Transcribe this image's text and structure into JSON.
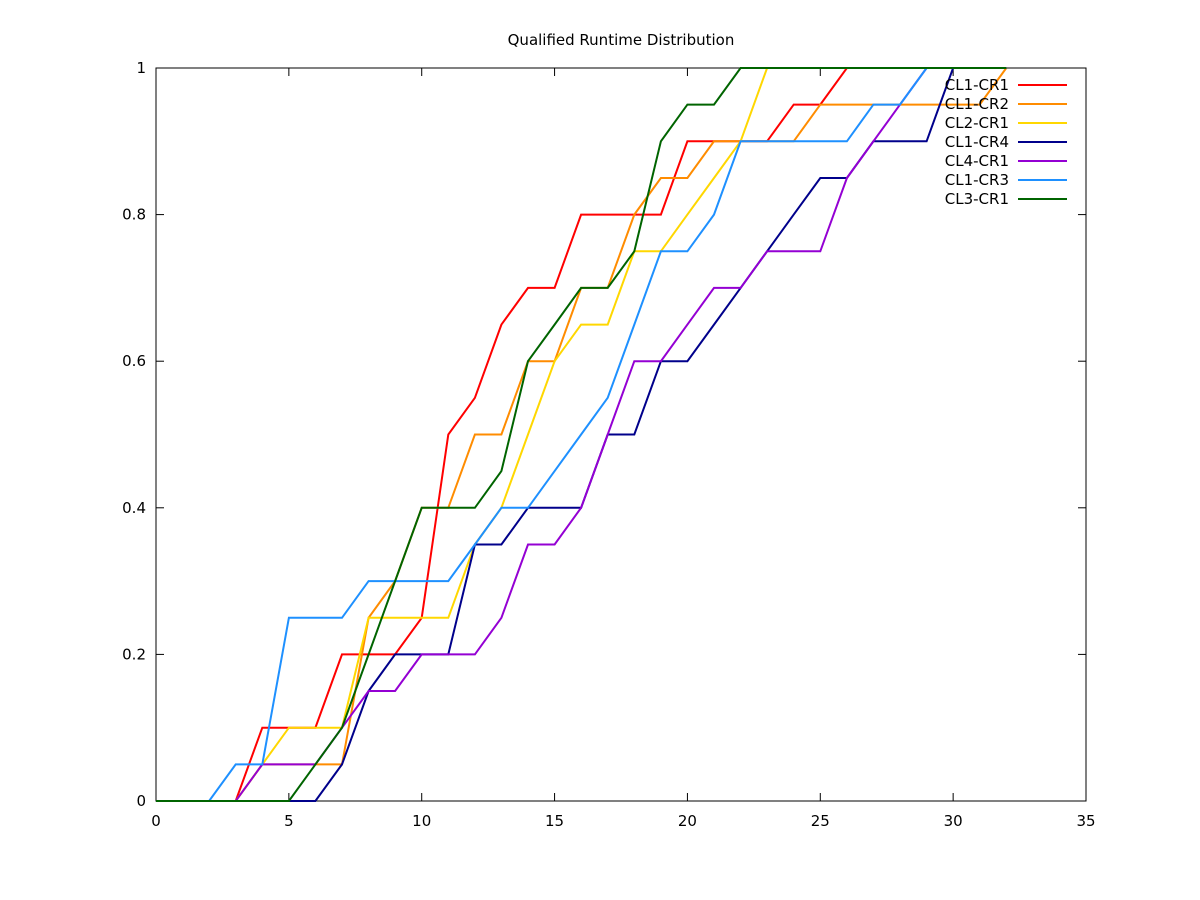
{
  "chart_data": {
    "type": "line",
    "title": "Qualified Runtime Distribution",
    "xlabel": "",
    "ylabel": "",
    "xlim": [
      0,
      35
    ],
    "ylim": [
      0,
      1
    ],
    "xticks": [
      0,
      5,
      10,
      15,
      20,
      25,
      30,
      35
    ],
    "yticks": [
      0,
      0.2,
      0.4,
      0.6,
      0.8,
      1
    ],
    "grid": false,
    "legend_position": "top-right",
    "series": [
      {
        "name": "CL1-CR1",
        "color": "#ff0000",
        "x": [
          0,
          1,
          2,
          3,
          4,
          5,
          6,
          7,
          8,
          9,
          10,
          11,
          12,
          13,
          14,
          15,
          16,
          17,
          18,
          19,
          20,
          21,
          22,
          23,
          24,
          25,
          26,
          27,
          28,
          29,
          30,
          31,
          32
        ],
        "y": [
          0,
          0,
          0,
          0,
          0.1,
          0.1,
          0.1,
          0.2,
          0.2,
          0.2,
          0.25,
          0.5,
          0.55,
          0.65,
          0.7,
          0.7,
          0.8,
          0.8,
          0.8,
          0.8,
          0.9,
          0.9,
          0.9,
          0.9,
          0.95,
          0.95,
          1,
          1,
          1,
          1,
          1,
          1,
          1
        ]
      },
      {
        "name": "CL1-CR2",
        "color": "#ff8c00",
        "x": [
          0,
          1,
          2,
          3,
          4,
          5,
          6,
          7,
          8,
          9,
          10,
          11,
          12,
          13,
          14,
          15,
          16,
          17,
          18,
          19,
          20,
          21,
          22,
          23,
          24,
          25,
          26,
          27,
          28,
          29,
          30,
          31,
          32
        ],
        "y": [
          0,
          0,
          0,
          0,
          0.05,
          0.05,
          0.05,
          0.05,
          0.25,
          0.3,
          0.4,
          0.4,
          0.5,
          0.5,
          0.6,
          0.6,
          0.7,
          0.7,
          0.8,
          0.85,
          0.85,
          0.9,
          0.9,
          0.9,
          0.9,
          0.95,
          0.95,
          0.95,
          0.95,
          0.95,
          0.95,
          0.95,
          1
        ]
      },
      {
        "name": "CL2-CR1",
        "color": "#ffd700",
        "x": [
          0,
          1,
          2,
          3,
          4,
          5,
          6,
          7,
          8,
          9,
          10,
          11,
          12,
          13,
          14,
          15,
          16,
          17,
          18,
          19,
          20,
          21,
          22,
          23,
          24,
          25,
          26,
          27,
          28,
          29,
          30,
          31,
          32
        ],
        "y": [
          0,
          0,
          0,
          0,
          0.05,
          0.1,
          0.1,
          0.1,
          0.25,
          0.25,
          0.25,
          0.25,
          0.35,
          0.4,
          0.5,
          0.6,
          0.65,
          0.65,
          0.75,
          0.75,
          0.8,
          0.85,
          0.9,
          1,
          1,
          1,
          1,
          1,
          1,
          1,
          1,
          1,
          1
        ]
      },
      {
        "name": "CL1-CR4",
        "color": "#00008b",
        "x": [
          0,
          1,
          2,
          3,
          4,
          5,
          6,
          7,
          8,
          9,
          10,
          11,
          12,
          13,
          14,
          15,
          16,
          17,
          18,
          19,
          20,
          21,
          22,
          23,
          24,
          25,
          26,
          27,
          28,
          29,
          30,
          31,
          32
        ],
        "y": [
          0,
          0,
          0,
          0,
          0,
          0,
          0,
          0.05,
          0.15,
          0.2,
          0.2,
          0.2,
          0.35,
          0.35,
          0.4,
          0.4,
          0.4,
          0.5,
          0.5,
          0.6,
          0.6,
          0.65,
          0.7,
          0.75,
          0.8,
          0.85,
          0.85,
          0.9,
          0.9,
          0.9,
          1,
          1,
          1
        ]
      },
      {
        "name": "CL4-CR1",
        "color": "#9400d3",
        "x": [
          0,
          1,
          2,
          3,
          4,
          5,
          6,
          7,
          8,
          9,
          10,
          11,
          12,
          13,
          14,
          15,
          16,
          17,
          18,
          19,
          20,
          21,
          22,
          23,
          24,
          25,
          26,
          27,
          28,
          29,
          30,
          31,
          32
        ],
        "y": [
          0,
          0,
          0,
          0,
          0.05,
          0.05,
          0.05,
          0.1,
          0.15,
          0.15,
          0.2,
          0.2,
          0.2,
          0.25,
          0.35,
          0.35,
          0.4,
          0.5,
          0.6,
          0.6,
          0.65,
          0.7,
          0.7,
          0.75,
          0.75,
          0.75,
          0.85,
          0.9,
          0.95,
          1,
          1,
          1,
          1
        ]
      },
      {
        "name": "CL1-CR3",
        "color": "#1e90ff",
        "x": [
          0,
          1,
          2,
          3,
          4,
          5,
          6,
          7,
          8,
          9,
          10,
          11,
          12,
          13,
          14,
          15,
          16,
          17,
          18,
          19,
          20,
          21,
          22,
          23,
          24,
          25,
          26,
          27,
          28,
          29,
          30,
          31,
          32
        ],
        "y": [
          0,
          0,
          0,
          0.05,
          0.05,
          0.25,
          0.25,
          0.25,
          0.3,
          0.3,
          0.3,
          0.3,
          0.35,
          0.4,
          0.4,
          0.45,
          0.5,
          0.55,
          0.65,
          0.75,
          0.75,
          0.8,
          0.9,
          0.9,
          0.9,
          0.9,
          0.9,
          0.95,
          0.95,
          1,
          1,
          1,
          1
        ]
      },
      {
        "name": "CL3-CR1",
        "color": "#006400",
        "x": [
          0,
          1,
          2,
          3,
          4,
          5,
          6,
          7,
          8,
          9,
          10,
          11,
          12,
          13,
          14,
          15,
          16,
          17,
          18,
          19,
          20,
          21,
          22,
          23,
          24,
          25,
          26,
          27,
          28,
          29,
          30,
          31,
          32
        ],
        "y": [
          0,
          0,
          0,
          0,
          0,
          0,
          0.05,
          0.1,
          0.2,
          0.3,
          0.4,
          0.4,
          0.4,
          0.45,
          0.6,
          0.65,
          0.7,
          0.7,
          0.75,
          0.9,
          0.95,
          0.95,
          1,
          1,
          1,
          1,
          1,
          1,
          1,
          1,
          1,
          1,
          1
        ]
      }
    ]
  }
}
